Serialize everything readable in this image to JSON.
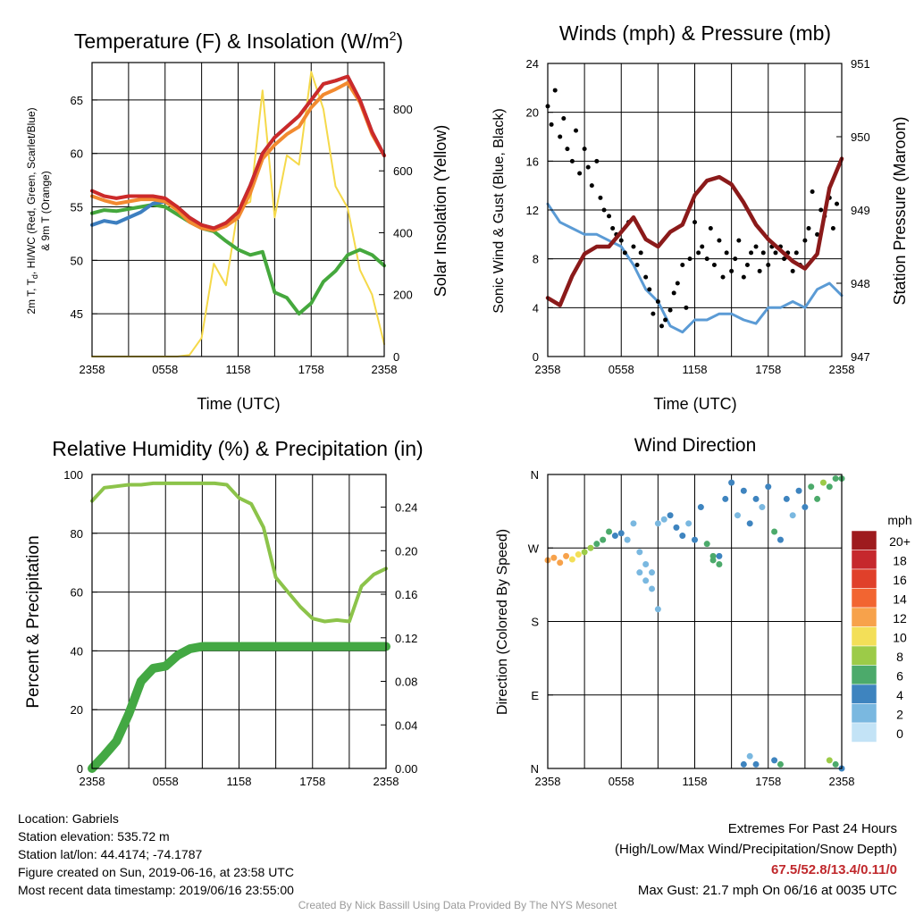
{
  "chart_data": [
    {
      "type": "line",
      "title": "Temperature (F) & Insolation (W/m²)",
      "title_main": "Temperature (F) & Insolation (W/m",
      "title_sup": "2",
      "title_close": ")",
      "xlabel": "Time (UTC)",
      "ylabel_left": "2m T, Td, HI/WC (Red, Green, Scarlet/Blue) & 9m T (Orange)",
      "ylabel_left_line1_pre": "2m T, T",
      "ylabel_left_line1_sub": "d",
      "ylabel_left_line1_post": ", HI/WC (Red, Green, Scarlet/Blue)",
      "ylabel_left_line2": "& 9m T (Orange)",
      "ylabel_right": "Solar Insolation (Yellow)",
      "x_ticks": [
        "2358",
        "0558",
        "1158",
        "1758",
        "2358"
      ],
      "ylim_left": [
        41,
        68.5
      ],
      "y_ticks_left": [
        "45",
        "50",
        "55",
        "60",
        "65"
      ],
      "ylim_right": [
        0,
        950
      ],
      "y_ticks_right": [
        "0",
        "200",
        "400",
        "600",
        "800"
      ],
      "x_hours": [
        0,
        1,
        2,
        3,
        4,
        5,
        6,
        7,
        8,
        9,
        10,
        11,
        12,
        13,
        14,
        15,
        16,
        17,
        18,
        19,
        20,
        21,
        22,
        23,
        24
      ],
      "series": [
        {
          "color": "#cc2a2a",
          "values": [
            56.5,
            56,
            55.8,
            56,
            56,
            56,
            55.8,
            55,
            54,
            53.3,
            53,
            53.5,
            54.5,
            57,
            60,
            61.5,
            62.5,
            63.5,
            65,
            66.5,
            66.8,
            67.2,
            65,
            62,
            59.8
          ]
        },
        {
          "color": "#f28a30",
          "values": [
            56,
            55.6,
            55.3,
            55.5,
            55.7,
            55.7,
            55.5,
            54.7,
            53.6,
            53,
            52.8,
            53.2,
            54,
            56.3,
            59.5,
            60.8,
            61.8,
            62.5,
            64.3,
            65.5,
            66,
            66.6,
            64.8,
            61.8,
            59.8
          ]
        },
        {
          "color": "#3d7fc0",
          "values": [
            53.3,
            53.7,
            53.5,
            54,
            54.5,
            55.3,
            55.5,
            55,
            54,
            53.3,
            53,
            53.5,
            54.5,
            57,
            60,
            61.5,
            62.5,
            63.5,
            65,
            66.5,
            66.8,
            67.2,
            65,
            62,
            59.8
          ]
        },
        {
          "color": "#45a83d",
          "values": [
            54.4,
            54.7,
            54.6,
            54.8,
            55,
            55.2,
            55,
            54.3,
            53.6,
            53,
            52.7,
            51.8,
            51,
            50.5,
            50.8,
            47,
            46.5,
            45,
            46,
            48,
            49,
            50.5,
            51,
            50.5,
            49.5
          ]
        },
        {
          "color": "#f5d94a",
          "axis": "right",
          "values": [
            0,
            0,
            0,
            0,
            0,
            0,
            0,
            0,
            5,
            60,
            300,
            230,
            480,
            500,
            860,
            450,
            650,
            620,
            920,
            800,
            550,
            480,
            280,
            200,
            40
          ]
        }
      ]
    },
    {
      "type": "line",
      "title": "Winds (mph) & Pressure (mb)",
      "xlabel": "Time (UTC)",
      "ylabel_left": "Sonic Wind & Gust (Blue, Black)",
      "ylabel_right": "Station Pressure (Maroon)",
      "x_ticks": [
        "2358",
        "0558",
        "1158",
        "1758",
        "2358"
      ],
      "ylim_left": [
        0,
        24
      ],
      "y_ticks_left": [
        "0",
        "4",
        "8",
        "12",
        "16",
        "20",
        "24"
      ],
      "ylim_right": [
        947,
        951
      ],
      "y_ticks_right": [
        "947",
        "948",
        "949",
        "950",
        "951"
      ],
      "x_hours": [
        0,
        1,
        2,
        3,
        4,
        5,
        6,
        7,
        8,
        9,
        10,
        11,
        12,
        13,
        14,
        15,
        16,
        17,
        18,
        19,
        20,
        21,
        22,
        23,
        24
      ],
      "series": [
        {
          "color": "#5b9bd5",
          "values": [
            12.5,
            11,
            10.5,
            10,
            10,
            9.5,
            9,
            7.5,
            5.5,
            4.5,
            2.5,
            2,
            3,
            3,
            3.5,
            3.5,
            3,
            2.7,
            4,
            4,
            4.5,
            4,
            5.5,
            6,
            5
          ]
        },
        {
          "color": "#8b1a1a",
          "axis": "right",
          "values": [
            947.8,
            947.7,
            948.1,
            948.4,
            948.5,
            948.5,
            948.7,
            948.9,
            948.6,
            948.5,
            948.7,
            948.8,
            949.2,
            949.4,
            949.45,
            949.35,
            949.1,
            948.8,
            948.6,
            948.45,
            948.3,
            948.2,
            948.4,
            949.3,
            949.7
          ]
        }
      ],
      "gust_points_hours": [
        0,
        0.3,
        0.6,
        1,
        1.3,
        1.6,
        2,
        2.3,
        2.6,
        3,
        3.3,
        3.6,
        4,
        4.3,
        4.6,
        5,
        5.3,
        5.6,
        6,
        6.3,
        6.6,
        7,
        7.3,
        7.6,
        8,
        8.3,
        8.6,
        9,
        9.3,
        9.6,
        10,
        10.3,
        10.6,
        11,
        11.3,
        11.6,
        12,
        12.3,
        12.6,
        13,
        13.3,
        13.6,
        14,
        14.3,
        14.6,
        15,
        15.3,
        15.6,
        16,
        16.3,
        16.6,
        17,
        17.3,
        17.6,
        18,
        18.3,
        18.6,
        19,
        19.3,
        19.6,
        20,
        20.3,
        20.6,
        21,
        21.3,
        21.6,
        22,
        22.3,
        22.6,
        23,
        23.3,
        23.6
      ],
      "gust_points_mph": [
        20.5,
        19,
        21.8,
        18,
        19.5,
        17,
        16,
        18.5,
        15,
        17,
        15.5,
        14,
        16,
        13,
        12,
        11.5,
        10.5,
        10,
        9.5,
        8.5,
        11,
        9,
        7.5,
        8.5,
        6.5,
        5.5,
        3.5,
        4.5,
        2.5,
        3,
        3.8,
        5.2,
        6,
        7.5,
        4,
        8,
        11,
        8.5,
        9,
        8,
        10.5,
        7.5,
        9.5,
        6.5,
        8.5,
        7,
        8,
        9.5,
        6.5,
        7.5,
        8.5,
        9,
        7,
        8.5,
        7.5,
        9,
        8.5,
        9,
        8,
        8.5,
        7,
        8.5,
        7.5,
        9.5,
        10.5,
        13.5,
        10,
        12,
        11.5,
        13,
        10.5,
        12.5
      ]
    },
    {
      "type": "line",
      "title": "Relative Humidity (%) & Precipitation (in)",
      "ylabel_left": "Percent & Precipitation",
      "x_ticks": [
        "2358",
        "0558",
        "1158",
        "1758",
        "2358"
      ],
      "ylim_left": [
        0,
        100
      ],
      "y_ticks_left": [
        "0",
        "20",
        "40",
        "60",
        "80",
        "100"
      ],
      "ylim_right": [
        0,
        0.27
      ],
      "y_ticks_right": [
        "0.00",
        "0.04",
        "0.08",
        "0.12",
        "0.16",
        "0.20",
        "0.24"
      ],
      "x_hours": [
        0,
        1,
        2,
        3,
        4,
        5,
        6,
        7,
        8,
        9,
        10,
        11,
        12,
        13,
        14,
        15,
        16,
        17,
        18,
        19,
        20,
        21,
        22,
        23,
        24
      ],
      "series": [
        {
          "color": "#8cc34a",
          "values": [
            91,
            95.5,
            96,
            96.5,
            96.5,
            97,
            97,
            97,
            97,
            97,
            97,
            96.5,
            92,
            90,
            82,
            65,
            60,
            55,
            51,
            50,
            50.5,
            50,
            62,
            66,
            68
          ]
        },
        {
          "color": "#43a843",
          "axis": "right",
          "values": [
            0,
            0.012,
            0.025,
            0.05,
            0.08,
            0.092,
            0.094,
            0.104,
            0.11,
            0.112,
            0.112,
            0.112,
            0.112,
            0.112,
            0.112,
            0.112,
            0.112,
            0.112,
            0.112,
            0.112,
            0.112,
            0.112,
            0.112,
            0.112,
            0.112
          ]
        }
      ]
    },
    {
      "type": "scatter",
      "title": "Wind Direction",
      "ylabel_left": "Direction (Colored By Speed)",
      "x_ticks": [
        "2358",
        "0558",
        "1158",
        "1758",
        "2358"
      ],
      "ylim": [
        0,
        360
      ],
      "y_ticks": [
        "N",
        "E",
        "S",
        "W",
        "N"
      ],
      "legend": {
        "title": "mph",
        "labels": [
          "20+",
          "18",
          "16",
          "14",
          "12",
          "10",
          "8",
          "6",
          "4",
          "2",
          "0"
        ],
        "colors": [
          "#9e1b1e",
          "#c6282d",
          "#e0402a",
          "#f26531",
          "#f7a24b",
          "#f3df58",
          "#9ccb48",
          "#4caa6b",
          "#3e84bf",
          "#7ab8e0",
          "#c3e3f6"
        ]
      },
      "points_hours": [
        0,
        0.5,
        1,
        1.5,
        2,
        2.5,
        3,
        3.5,
        4,
        4.5,
        5,
        5.5,
        6,
        6.5,
        7,
        7.5,
        8,
        8.5,
        9,
        9.5,
        10,
        10.5,
        11,
        11.5,
        12,
        12.5,
        13,
        13.5,
        14,
        14.5,
        15,
        15.5,
        16,
        16.5,
        17,
        17.5,
        18,
        18.5,
        19,
        19.5,
        20,
        20.5,
        21,
        21.5,
        22,
        22.5,
        23,
        23.5,
        24,
        16,
        16.5,
        17,
        18.5,
        19,
        23,
        23.5,
        24,
        7.5,
        8,
        8.5,
        9,
        13.5,
        14
      ],
      "points_deg": [
        255,
        258,
        252,
        260,
        256,
        262,
        265,
        270,
        275,
        280,
        290,
        285,
        288,
        280,
        300,
        265,
        250,
        240,
        300,
        305,
        310,
        295,
        285,
        300,
        280,
        320,
        275,
        255,
        260,
        330,
        350,
        310,
        340,
        300,
        330,
        320,
        345,
        290,
        280,
        330,
        310,
        340,
        320,
        345,
        330,
        350,
        345,
        355,
        355,
        5,
        15,
        5,
        10,
        5,
        10,
        5,
        0,
        240,
        230,
        220,
        195,
        260,
        250
      ],
      "points_mph": [
        12,
        12,
        11,
        12,
        10,
        9,
        8,
        7,
        6,
        5,
        5,
        4,
        3,
        2,
        1,
        2,
        1,
        1,
        2,
        1,
        3,
        4,
        3,
        2,
        3,
        4,
        5,
        6,
        3,
        4,
        4,
        2,
        3,
        4,
        3,
        2,
        4,
        5,
        4,
        3,
        2,
        4,
        3,
        6,
        5,
        7,
        6,
        6,
        6,
        4,
        2,
        3,
        4,
        5,
        7,
        6,
        4,
        1,
        1,
        2,
        1,
        5,
        6
      ]
    }
  ],
  "footer": {
    "location": "Location: Gabriels",
    "elevation": "Station elevation: 535.72 m",
    "latlon": "Station lat/lon: 44.4174; -74.1787",
    "created": "Figure created on Sun, 2019-06-16, at 23:58 UTC",
    "recent": "Most recent data timestamp: 2019/06/16 23:55:00",
    "extremes_title": "Extremes For Past 24 Hours",
    "extremes_subtitle": "(High/Low/Max Wind/Precipitation/Snow Depth)",
    "extremes_values": "67.5/52.8/13.4/0.11/0",
    "max_gust": "Max Gust: 21.7 mph On 06/16 at 0035 UTC",
    "credit": "Created By Nick Bassill Using Data Provided By The NYS Mesonet"
  }
}
